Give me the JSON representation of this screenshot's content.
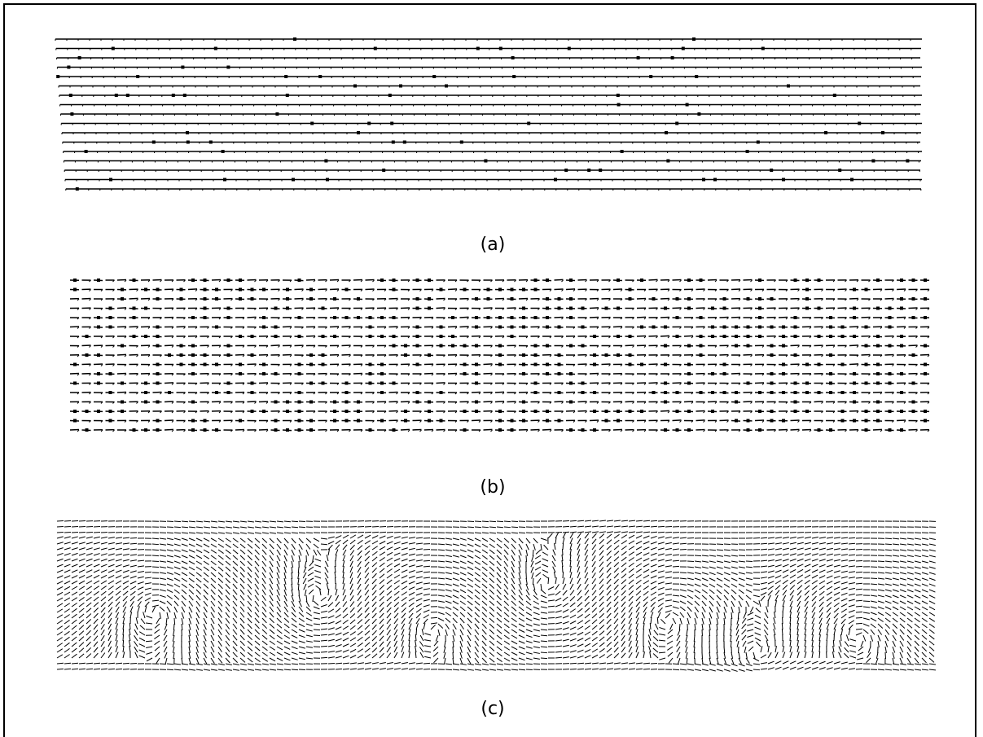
{
  "figure": {
    "panels": [
      {
        "id": "a",
        "label": "(a)",
        "kind": "sparse-vector-rows",
        "rows": 17
      },
      {
        "id": "b",
        "label": "(b)",
        "kind": "dense-vector-rows",
        "rows": 17
      },
      {
        "id": "c",
        "label": "(c)",
        "kind": "vortex-flow-field"
      }
    ],
    "ink_color": "#000000",
    "background_color": "#ffffff"
  }
}
